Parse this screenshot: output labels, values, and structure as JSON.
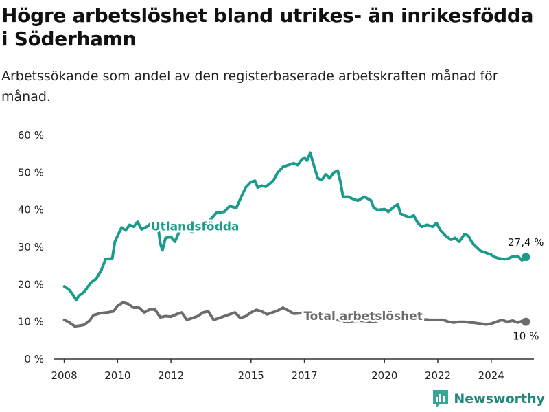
{
  "page": {
    "title": "Högre arbetslöshet bland utrikes- än inrikesfödda i Söderhamn",
    "subtitle": "Arbetssökande som andel av den registerbaserade arbetskraften månad för månad.",
    "brand": "Newsworthy"
  },
  "chart_data": {
    "type": "line",
    "title": "Högre arbetslöshet bland utrikes- än inrikesfödda i Söderhamn",
    "subtitle": "Arbetssökande som andel av den registerbaserade arbetskraften månad för månad.",
    "xlabel": "",
    "ylabel": "",
    "xlim": [
      2007.6,
      2025.6
    ],
    "ylim": [
      0,
      60
    ],
    "grid": false,
    "y_ticks": [
      0,
      10,
      20,
      30,
      40,
      50,
      60
    ],
    "y_tick_labels": [
      "0 %",
      "10 %",
      "20 %",
      "30 %",
      "40 %",
      "50 %",
      "60 %"
    ],
    "x_ticks": [
      2008,
      2010,
      2012,
      2015,
      2017,
      2020,
      2022,
      2024
    ],
    "x_tick_labels": [
      "2008",
      "2010",
      "2012",
      "2015",
      "2017",
      "2020",
      "2022",
      "2024"
    ],
    "series": [
      {
        "name": "Utlandsfödda",
        "color": "#1a9c8c",
        "end_label": "27,4 %",
        "points": [
          [
            2008.0,
            19.5
          ],
          [
            2008.2,
            18.5
          ],
          [
            2008.35,
            17.0
          ],
          [
            2008.45,
            15.8
          ],
          [
            2008.55,
            17.0
          ],
          [
            2008.75,
            18.0
          ],
          [
            2009.0,
            20.5
          ],
          [
            2009.2,
            21.5
          ],
          [
            2009.4,
            24.0
          ],
          [
            2009.55,
            26.8
          ],
          [
            2009.8,
            27.0
          ],
          [
            2009.9,
            31.5
          ],
          [
            2010.0,
            33.0
          ],
          [
            2010.15,
            35.3
          ],
          [
            2010.3,
            34.5
          ],
          [
            2010.45,
            36.0
          ],
          [
            2010.6,
            35.5
          ],
          [
            2010.75,
            36.8
          ],
          [
            2010.9,
            34.8
          ],
          [
            2011.1,
            35.5
          ],
          [
            2011.3,
            36.7
          ],
          [
            2011.5,
            36.2
          ],
          [
            2011.6,
            31.0
          ],
          [
            2011.68,
            29.2
          ],
          [
            2011.8,
            32.5
          ],
          [
            2012.0,
            32.8
          ],
          [
            2012.15,
            31.5
          ],
          [
            2012.3,
            34.0
          ],
          [
            2012.5,
            35.2
          ],
          [
            2012.8,
            34.0
          ],
          [
            2013.0,
            35.5
          ],
          [
            2013.2,
            35.0
          ],
          [
            2013.4,
            36.8
          ],
          [
            2013.55,
            38.0
          ],
          [
            2013.7,
            39.2
          ],
          [
            2014.0,
            39.5
          ],
          [
            2014.2,
            41.0
          ],
          [
            2014.45,
            40.5
          ],
          [
            2014.6,
            43.0
          ],
          [
            2014.8,
            46.0
          ],
          [
            2015.0,
            47.5
          ],
          [
            2015.15,
            47.8
          ],
          [
            2015.25,
            46.0
          ],
          [
            2015.4,
            46.5
          ],
          [
            2015.55,
            46.2
          ],
          [
            2015.7,
            47.0
          ],
          [
            2015.85,
            48.0
          ],
          [
            2016.0,
            50.0
          ],
          [
            2016.2,
            51.5
          ],
          [
            2016.4,
            52.0
          ],
          [
            2016.6,
            52.5
          ],
          [
            2016.75,
            52.0
          ],
          [
            2016.9,
            53.5
          ],
          [
            2017.0,
            54.0
          ],
          [
            2017.1,
            53.2
          ],
          [
            2017.22,
            55.3
          ],
          [
            2017.35,
            52.0
          ],
          [
            2017.5,
            48.5
          ],
          [
            2017.65,
            48.0
          ],
          [
            2017.8,
            49.5
          ],
          [
            2017.95,
            48.5
          ],
          [
            2018.1,
            50.0
          ],
          [
            2018.25,
            50.5
          ],
          [
            2018.35,
            47.5
          ],
          [
            2018.45,
            43.5
          ],
          [
            2018.65,
            43.5
          ],
          [
            2018.8,
            43.0
          ],
          [
            2019.0,
            42.5
          ],
          [
            2019.25,
            43.5
          ],
          [
            2019.5,
            42.5
          ],
          [
            2019.6,
            40.5
          ],
          [
            2019.75,
            40.0
          ],
          [
            2020.0,
            40.2
          ],
          [
            2020.15,
            39.5
          ],
          [
            2020.3,
            40.5
          ],
          [
            2020.5,
            41.5
          ],
          [
            2020.6,
            39.0
          ],
          [
            2020.75,
            38.5
          ],
          [
            2020.95,
            38.0
          ],
          [
            2021.1,
            38.5
          ],
          [
            2021.25,
            36.5
          ],
          [
            2021.4,
            35.5
          ],
          [
            2021.6,
            36.0
          ],
          [
            2021.8,
            35.5
          ],
          [
            2021.95,
            36.5
          ],
          [
            2022.1,
            34.5
          ],
          [
            2022.3,
            33.0
          ],
          [
            2022.5,
            32.0
          ],
          [
            2022.65,
            32.5
          ],
          [
            2022.8,
            31.5
          ],
          [
            2023.0,
            33.5
          ],
          [
            2023.15,
            33.0
          ],
          [
            2023.3,
            31.0
          ],
          [
            2023.45,
            30.0
          ],
          [
            2023.6,
            29.0
          ],
          [
            2023.8,
            28.5
          ],
          [
            2024.0,
            28.0
          ],
          [
            2024.15,
            27.3
          ],
          [
            2024.3,
            27.0
          ],
          [
            2024.5,
            26.8
          ],
          [
            2024.65,
            27.0
          ],
          [
            2024.8,
            27.5
          ],
          [
            2025.0,
            27.6
          ],
          [
            2025.15,
            26.5
          ],
          [
            2025.3,
            27.4
          ]
        ]
      },
      {
        "name": "Total arbetslöshet",
        "color": "#6b6b70",
        "end_label": "10 %",
        "points": [
          [
            2008.0,
            10.5
          ],
          [
            2008.2,
            9.8
          ],
          [
            2008.4,
            8.8
          ],
          [
            2008.6,
            9.0
          ],
          [
            2008.75,
            9.2
          ],
          [
            2008.95,
            10.3
          ],
          [
            2009.1,
            11.8
          ],
          [
            2009.35,
            12.3
          ],
          [
            2009.6,
            12.5
          ],
          [
            2009.85,
            12.8
          ],
          [
            2010.0,
            14.3
          ],
          [
            2010.2,
            15.2
          ],
          [
            2010.4,
            14.8
          ],
          [
            2010.6,
            13.8
          ],
          [
            2010.8,
            13.8
          ],
          [
            2011.0,
            12.5
          ],
          [
            2011.2,
            13.3
          ],
          [
            2011.4,
            13.3
          ],
          [
            2011.6,
            11.2
          ],
          [
            2011.8,
            11.5
          ],
          [
            2012.0,
            11.4
          ],
          [
            2012.2,
            12.0
          ],
          [
            2012.4,
            12.5
          ],
          [
            2012.6,
            10.5
          ],
          [
            2012.8,
            11.0
          ],
          [
            2013.0,
            11.5
          ],
          [
            2013.2,
            12.5
          ],
          [
            2013.4,
            12.8
          ],
          [
            2013.6,
            10.5
          ],
          [
            2013.8,
            11.0
          ],
          [
            2014.0,
            11.5
          ],
          [
            2014.2,
            12.0
          ],
          [
            2014.4,
            12.5
          ],
          [
            2014.6,
            11.0
          ],
          [
            2014.8,
            11.5
          ],
          [
            2015.0,
            12.5
          ],
          [
            2015.2,
            13.2
          ],
          [
            2015.4,
            12.8
          ],
          [
            2015.6,
            12.0
          ],
          [
            2015.8,
            12.5
          ],
          [
            2016.0,
            13.0
          ],
          [
            2016.2,
            13.8
          ],
          [
            2016.4,
            13.0
          ],
          [
            2016.6,
            12.2
          ],
          [
            2016.8,
            12.3
          ],
          [
            2017.0,
            12.5
          ],
          [
            2017.2,
            12.0
          ],
          [
            2017.4,
            11.5
          ],
          [
            2017.6,
            11.0
          ],
          [
            2017.8,
            10.8
          ],
          [
            2018.0,
            10.6
          ],
          [
            2018.2,
            10.5
          ],
          [
            2018.4,
            10.3
          ],
          [
            2018.6,
            10.0
          ],
          [
            2018.8,
            10.2
          ],
          [
            2019.0,
            10.3
          ],
          [
            2019.3,
            10.2
          ],
          [
            2019.6,
            10.0
          ],
          [
            2019.9,
            10.5
          ],
          [
            2020.2,
            10.8
          ],
          [
            2020.5,
            10.5
          ],
          [
            2020.8,
            10.8
          ],
          [
            2021.1,
            10.6
          ],
          [
            2021.4,
            10.7
          ],
          [
            2021.7,
            10.5
          ],
          [
            2022.0,
            10.5
          ],
          [
            2022.2,
            10.5
          ],
          [
            2022.4,
            10.0
          ],
          [
            2022.6,
            9.8
          ],
          [
            2022.8,
            10.0
          ],
          [
            2023.0,
            10.0
          ],
          [
            2023.2,
            9.8
          ],
          [
            2023.4,
            9.7
          ],
          [
            2023.6,
            9.5
          ],
          [
            2023.8,
            9.3
          ],
          [
            2024.0,
            9.5
          ],
          [
            2024.2,
            10.0
          ],
          [
            2024.4,
            10.5
          ],
          [
            2024.6,
            10.0
          ],
          [
            2024.8,
            10.3
          ],
          [
            2025.0,
            9.8
          ],
          [
            2025.15,
            10.2
          ],
          [
            2025.3,
            10.0
          ]
        ]
      }
    ]
  }
}
